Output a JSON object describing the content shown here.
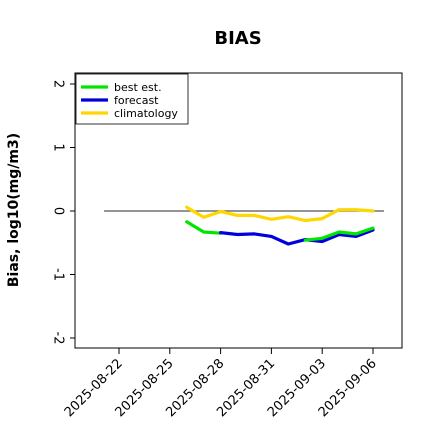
{
  "chart_data": {
    "type": "line",
    "title": "BIAS",
    "xlabel": "",
    "ylabel": "Bias, log10(mg/m3)",
    "ylim": [
      -2,
      2
    ],
    "yticks": [
      "2",
      "1",
      "0",
      "-1",
      "-2"
    ],
    "ytick_values": [
      2,
      1,
      0,
      -1,
      -2
    ],
    "xlim": [
      "2025-08-20",
      "2025-09-07"
    ],
    "xticks": [
      {
        "label": "2025-08-22",
        "date": "2025-08-22",
        "color": "#000000"
      },
      {
        "label": "2025-08-25",
        "date": "2025-08-25",
        "color": "#000000"
      },
      {
        "label": "2025-08-28",
        "date": "2025-08-28",
        "color": "#2e8b2e"
      },
      {
        "label": "2025-08-31",
        "date": "2025-08-31",
        "color": "#000000"
      },
      {
        "label": "2025-09-03",
        "date": "2025-09-03",
        "color": "#000000"
      },
      {
        "label": "2025-09-06",
        "date": "2025-09-06",
        "color": "#000000"
      }
    ],
    "reference_line": {
      "y": 0,
      "from": "2025-08-21",
      "to": "2025-09-07",
      "color": "#555555"
    },
    "legend_position": "top-left",
    "series": [
      {
        "name": "best est.",
        "color": "#00e600",
        "points": [
          {
            "x": "2025-08-26",
            "y": -0.17
          },
          {
            "x": "2025-08-27",
            "y": -0.33
          },
          {
            "x": "2025-08-28",
            "y": -0.35
          }
        ]
      },
      {
        "name": "forecast",
        "color": "#0000dd",
        "points": [
          {
            "x": "2025-08-28",
            "y": -0.34
          },
          {
            "x": "2025-08-29",
            "y": -0.37
          },
          {
            "x": "2025-08-30",
            "y": -0.36
          },
          {
            "x": "2025-08-31",
            "y": -0.4
          },
          {
            "x": "2025-09-01",
            "y": -0.52
          },
          {
            "x": "2025-09-02",
            "y": -0.45
          },
          {
            "x": "2025-09-03",
            "y": -0.48
          },
          {
            "x": "2025-09-04",
            "y": -0.37
          },
          {
            "x": "2025-09-05",
            "y": -0.4
          },
          {
            "x": "2025-09-06",
            "y": -0.3
          }
        ]
      },
      {
        "name": "climatology",
        "color": "#ffd700",
        "points": [
          {
            "x": "2025-08-26",
            "y": 0.06
          },
          {
            "x": "2025-08-27",
            "y": -0.1
          },
          {
            "x": "2025-08-28",
            "y": -0.01
          },
          {
            "x": "2025-08-29",
            "y": -0.07
          },
          {
            "x": "2025-08-30",
            "y": -0.07
          },
          {
            "x": "2025-08-31",
            "y": -0.13
          },
          {
            "x": "2025-09-01",
            "y": -0.09
          },
          {
            "x": "2025-09-02",
            "y": -0.15
          },
          {
            "x": "2025-09-03",
            "y": -0.12
          },
          {
            "x": "2025-09-04",
            "y": 0.02
          },
          {
            "x": "2025-09-05",
            "y": 0.02
          },
          {
            "x": "2025-09-06",
            "y": 0.0
          }
        ]
      },
      {
        "name": "",
        "color": "#00e600",
        "points": [
          {
            "x": "2025-09-02",
            "y": -0.46
          },
          {
            "x": "2025-09-03",
            "y": -0.43
          },
          {
            "x": "2025-09-04",
            "y": -0.33
          },
          {
            "x": "2025-09-05",
            "y": -0.36
          },
          {
            "x": "2025-09-06",
            "y": -0.27
          }
        ]
      }
    ]
  }
}
